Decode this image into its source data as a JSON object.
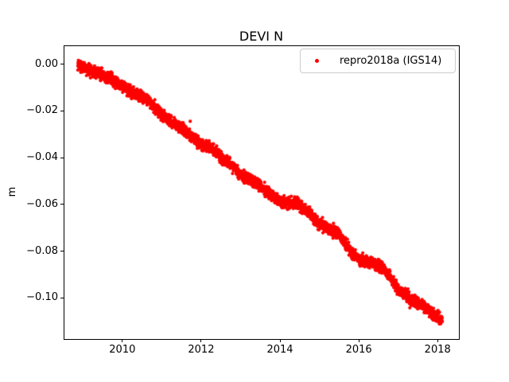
{
  "chart_data": {
    "type": "scatter",
    "title": "DEVI N",
    "xlabel": "",
    "ylabel": "m",
    "legend": {
      "label": "repro2018a (IGS14)",
      "position": "upper right",
      "marker_color": "#ff0000"
    },
    "marker": {
      "color": "#ff0000",
      "radius_px": 2.1
    },
    "axes": {
      "xlim": [
        2008.51,
        2018.52
      ],
      "ylim": [
        -0.1173,
        0.0081
      ],
      "grid": false,
      "xticks": [
        {
          "value": 2010,
          "label": "2010"
        },
        {
          "value": 2012,
          "label": "2012"
        },
        {
          "value": 2014,
          "label": "2014"
        },
        {
          "value": 2016,
          "label": "2016"
        },
        {
          "value": 2018,
          "label": "2018"
        }
      ],
      "yticks": [
        {
          "value": 0.0,
          "label": "0.00"
        },
        {
          "value": -0.02,
          "label": "−0.02"
        },
        {
          "value": -0.04,
          "label": "−0.04"
        },
        {
          "value": -0.06,
          "label": "−0.06"
        },
        {
          "value": -0.08,
          "label": "−0.08"
        },
        {
          "value": -0.1,
          "label": "−0.10"
        }
      ]
    },
    "series": [
      {
        "name": "repro2018a (IGS14)",
        "x_start": 2008.85,
        "x_end": 2018.1,
        "points_per_year": 365,
        "noise_sd": 0.0012,
        "seasonal_amplitude": 0.0005,
        "trend_anchors": [
          [
            2008.85,
            0.0005
          ],
          [
            2009.1,
            -0.0015
          ],
          [
            2009.4,
            -0.004
          ],
          [
            2009.7,
            -0.0065
          ],
          [
            2010.0,
            -0.009
          ],
          [
            2010.35,
            -0.0125
          ],
          [
            2010.7,
            -0.0165
          ],
          [
            2011.0,
            -0.021
          ],
          [
            2011.4,
            -0.0265
          ],
          [
            2011.7,
            -0.0305
          ],
          [
            2012.0,
            -0.0335
          ],
          [
            2012.25,
            -0.035
          ],
          [
            2012.5,
            -0.0405
          ],
          [
            2012.8,
            -0.0435
          ],
          [
            2013.0,
            -0.047
          ],
          [
            2013.4,
            -0.051
          ],
          [
            2013.8,
            -0.0565
          ],
          [
            2014.0,
            -0.058
          ],
          [
            2014.4,
            -0.0595
          ],
          [
            2014.7,
            -0.0635
          ],
          [
            2015.0,
            -0.068
          ],
          [
            2015.4,
            -0.0715
          ],
          [
            2015.8,
            -0.0805
          ],
          [
            2016.0,
            -0.0825
          ],
          [
            2016.4,
            -0.0855
          ],
          [
            2016.7,
            -0.089
          ],
          [
            2017.0,
            -0.096
          ],
          [
            2017.35,
            -0.1005
          ],
          [
            2017.7,
            -0.1045
          ],
          [
            2018.0,
            -0.1078
          ],
          [
            2018.1,
            -0.1085
          ]
        ]
      }
    ]
  }
}
